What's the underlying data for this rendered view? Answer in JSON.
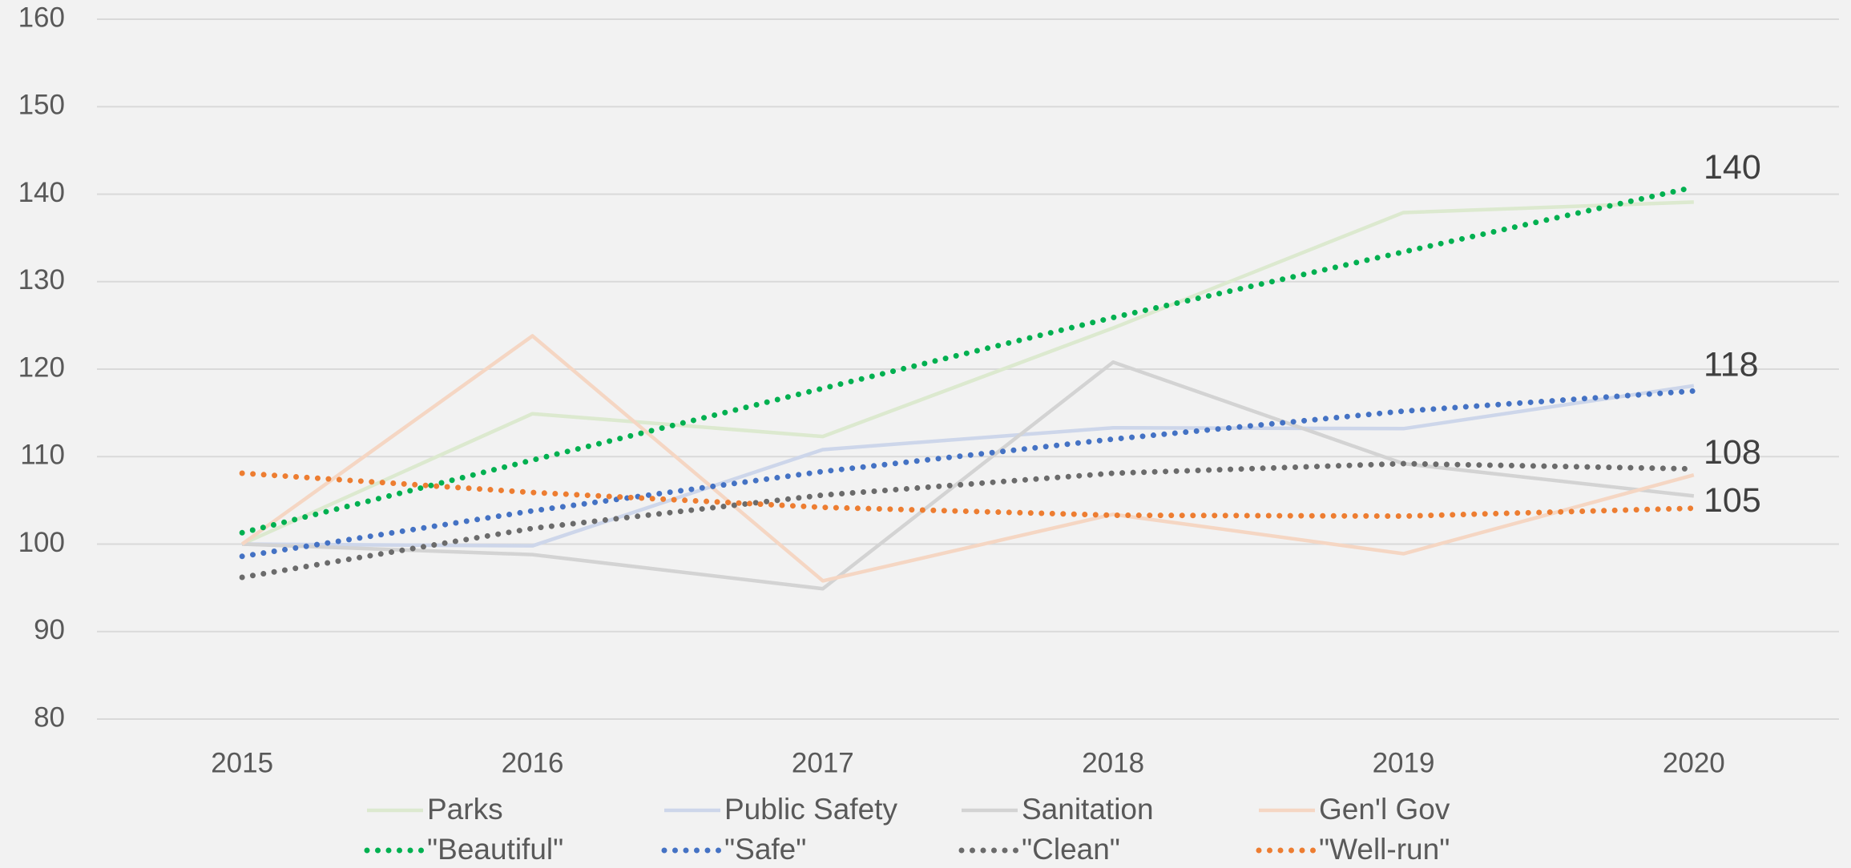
{
  "chart_data": {
    "type": "line",
    "categories": [
      "2015",
      "2016",
      "2017",
      "2018",
      "2019",
      "2020"
    ],
    "series": [
      {
        "name": "Parks",
        "color": "#dce9cf",
        "style": "solid",
        "values": [
          100,
          114.9,
          112.3,
          124.7,
          137.9,
          139.1
        ]
      },
      {
        "name": "Public Safety",
        "color": "#cdd6ea",
        "style": "solid",
        "values": [
          100,
          99.8,
          110.8,
          113.3,
          113.2,
          118.1
        ]
      },
      {
        "name": "Sanitation",
        "color": "#d3d3d3",
        "style": "solid",
        "values": [
          100,
          98.8,
          94.9,
          120.8,
          109.2,
          105.5
        ]
      },
      {
        "name": "Gen'l Gov",
        "color": "#f5d6c3",
        "style": "solid",
        "values": [
          100,
          123.8,
          95.8,
          103.4,
          98.9,
          107.9
        ]
      },
      {
        "name": "\"Beautiful\"",
        "color": "#00b050",
        "style": "dotted",
        "values": [
          101.3,
          109.6,
          117.8,
          125.9,
          133.4,
          140.8
        ]
      },
      {
        "name": "\"Safe\"",
        "color": "#4472c4",
        "style": "dotted",
        "values": [
          98.6,
          103.8,
          108.3,
          112,
          115.2,
          117.5
        ]
      },
      {
        "name": "\"Clean\"",
        "color": "#6b6b6b",
        "style": "dotted",
        "values": [
          96.2,
          101.8,
          105.6,
          108.1,
          109.2,
          108.6
        ]
      },
      {
        "name": "\"Well-run\"",
        "color": "#ed7d31",
        "style": "dotted",
        "values": [
          108.1,
          105.9,
          104.2,
          103.3,
          103.2,
          104.1
        ]
      }
    ],
    "annotations": [
      "140",
      "118",
      "108",
      "105"
    ],
    "ylim": [
      80,
      160
    ],
    "yticks": [
      80,
      90,
      100,
      110,
      120,
      130,
      140,
      150,
      160
    ],
    "grid": true,
    "legend": "bottom"
  }
}
